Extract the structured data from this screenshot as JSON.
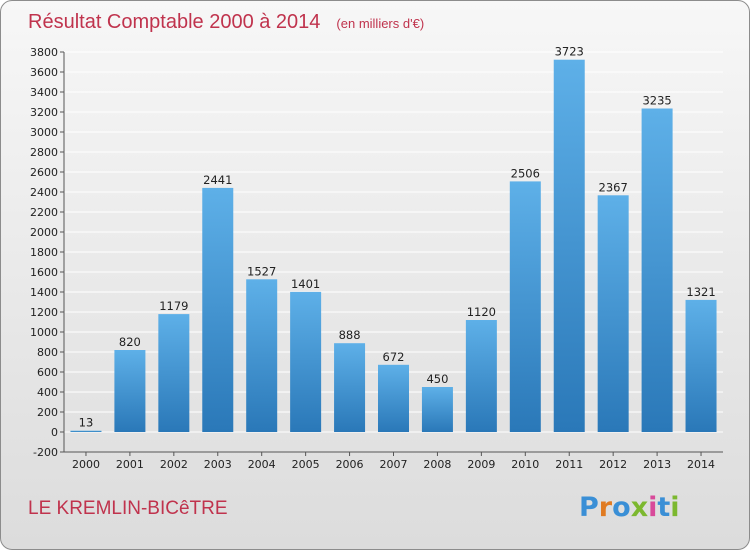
{
  "chart_data": {
    "type": "bar",
    "title": "Résultat Comptable 2000 à 2014",
    "subtitle": "(en milliers d'€)",
    "categories": [
      "2000",
      "2001",
      "2002",
      "2003",
      "2004",
      "2005",
      "2006",
      "2007",
      "2008",
      "2009",
      "2010",
      "2011",
      "2012",
      "2013",
      "2014"
    ],
    "values": [
      13,
      820,
      1179,
      2441,
      1527,
      1401,
      888,
      672,
      450,
      1120,
      2506,
      3723,
      2367,
      3235,
      1321
    ],
    "ylim": [
      -200,
      3800
    ],
    "ytick_step": 200,
    "grid": true,
    "xlabel": "",
    "ylabel": ""
  },
  "footer": {
    "city": "LE KREMLIN-BICêTRE",
    "logo": "Proxiti"
  },
  "colors": {
    "title": "#c0334d",
    "bar_top": "#5eb0e8",
    "bar_bottom": "#2a78b8",
    "grid": "#ffffff"
  }
}
